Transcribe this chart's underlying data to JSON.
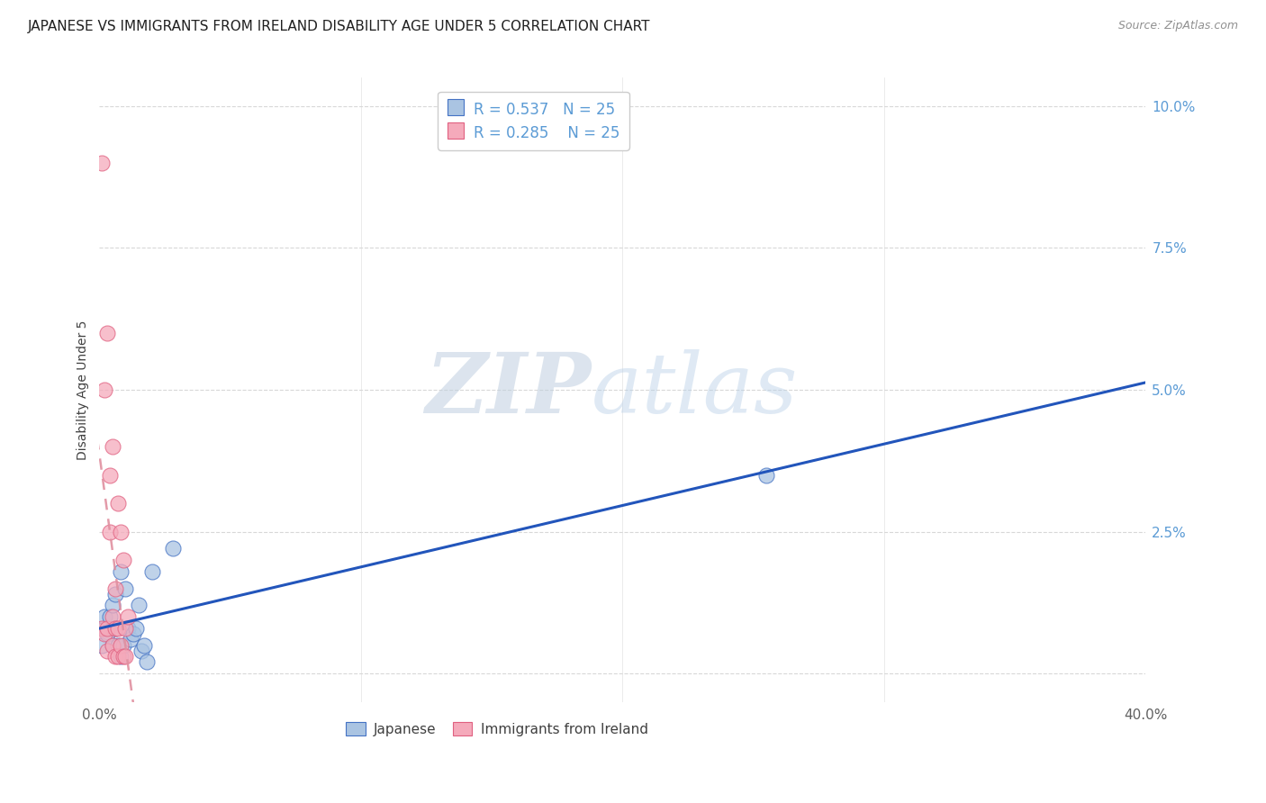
{
  "title": "JAPANESE VS IMMIGRANTS FROM IRELAND DISABILITY AGE UNDER 5 CORRELATION CHART",
  "source": "Source: ZipAtlas.com",
  "xlabel": "",
  "ylabel": "Disability Age Under 5",
  "xlim": [
    0.0,
    0.4
  ],
  "ylim": [
    -0.005,
    0.105
  ],
  "yticks": [
    0.0,
    0.025,
    0.05,
    0.075,
    0.1
  ],
  "ytick_labels": [
    "",
    "2.5%",
    "5.0%",
    "7.5%",
    "10.0%"
  ],
  "xticks": [
    0.0,
    0.1,
    0.2,
    0.3,
    0.4
  ],
  "xtick_labels": [
    "0.0%",
    "",
    "",
    "",
    "40.0%"
  ],
  "xticks_minor": [
    0.1,
    0.2,
    0.3
  ],
  "japanese_x": [
    0.001,
    0.002,
    0.002,
    0.003,
    0.004,
    0.005,
    0.005,
    0.006,
    0.006,
    0.007,
    0.008,
    0.008,
    0.009,
    0.01,
    0.011,
    0.012,
    0.013,
    0.014,
    0.015,
    0.016,
    0.017,
    0.018,
    0.02,
    0.028,
    0.255
  ],
  "japanese_y": [
    0.005,
    0.008,
    0.01,
    0.007,
    0.01,
    0.012,
    0.005,
    0.008,
    0.014,
    0.005,
    0.018,
    0.003,
    0.005,
    0.015,
    0.008,
    0.006,
    0.007,
    0.008,
    0.012,
    0.004,
    0.005,
    0.002,
    0.018,
    0.022,
    0.035
  ],
  "ireland_x": [
    0.001,
    0.001,
    0.002,
    0.002,
    0.003,
    0.003,
    0.003,
    0.004,
    0.004,
    0.005,
    0.005,
    0.005,
    0.006,
    0.006,
    0.006,
    0.007,
    0.007,
    0.007,
    0.008,
    0.008,
    0.009,
    0.009,
    0.01,
    0.01,
    0.011
  ],
  "ireland_y": [
    0.09,
    0.008,
    0.05,
    0.007,
    0.06,
    0.008,
    0.004,
    0.035,
    0.025,
    0.04,
    0.01,
    0.005,
    0.015,
    0.008,
    0.003,
    0.03,
    0.008,
    0.003,
    0.025,
    0.005,
    0.02,
    0.003,
    0.008,
    0.003,
    0.01
  ],
  "R_japanese": 0.537,
  "N_japanese": 25,
  "R_ireland": 0.285,
  "N_ireland": 25,
  "japanese_color": "#aac4e2",
  "ireland_color": "#f5aabb",
  "japanese_edge_color": "#4472c4",
  "ireland_edge_color": "#e06080",
  "japanese_line_color": "#2255bb",
  "ireland_line_color": "#e090a0",
  "background_color": "#ffffff",
  "grid_color": "#d8d8d8",
  "watermark_zip": "ZIP",
  "watermark_atlas": "atlas",
  "title_fontsize": 11,
  "axis_label_fontsize": 10,
  "tick_label_color_y": "#5b9bd5",
  "tick_label_color_x": "#606060"
}
